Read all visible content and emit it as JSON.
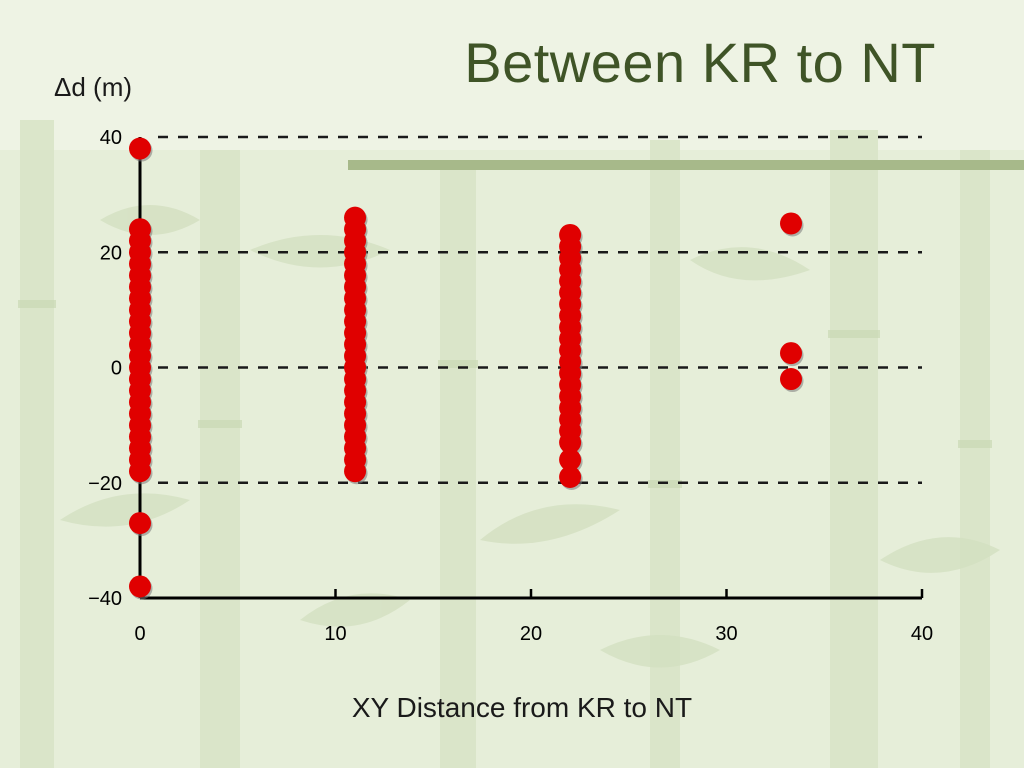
{
  "slide": {
    "title": "Between KR to NT"
  },
  "colors": {
    "background": "#e6eed9",
    "title": "#3f5427",
    "accent_bar": "#a7b98a",
    "points": "#e00000"
  },
  "chart_data": {
    "type": "scatter",
    "title": "",
    "xlabel": "XY Distance from KR to NT",
    "ylabel": "Δd (m)",
    "xlim": [
      0,
      40
    ],
    "ylim": [
      -40,
      40
    ],
    "xticks": [
      0,
      10,
      20,
      30,
      40
    ],
    "yticks": [
      40,
      20,
      0,
      -20,
      -40
    ],
    "ytick_labels": [
      "40",
      "20",
      "0",
      "−20",
      "−40"
    ],
    "grid": "horizontal dashed",
    "series": [
      {
        "points": [
          [
            0,
            38
          ],
          [
            0,
            24
          ],
          [
            0,
            22
          ],
          [
            0,
            20
          ],
          [
            0,
            18
          ],
          [
            0,
            16
          ],
          [
            0,
            14
          ],
          [
            0,
            12
          ],
          [
            0,
            10
          ],
          [
            0,
            8
          ],
          [
            0,
            6
          ],
          [
            0,
            4
          ],
          [
            0,
            2
          ],
          [
            0,
            0
          ],
          [
            0,
            -2
          ],
          [
            0,
            -4
          ],
          [
            0,
            -6
          ],
          [
            0,
            -8
          ],
          [
            0,
            -10
          ],
          [
            0,
            -12
          ],
          [
            0,
            -14
          ],
          [
            0,
            -16
          ],
          [
            0,
            -18
          ],
          [
            0,
            -27
          ],
          [
            0,
            -38
          ],
          [
            11,
            26
          ],
          [
            11,
            24
          ],
          [
            11,
            22
          ],
          [
            11,
            20
          ],
          [
            11,
            18
          ],
          [
            11,
            16
          ],
          [
            11,
            14
          ],
          [
            11,
            12
          ],
          [
            11,
            10
          ],
          [
            11,
            8
          ],
          [
            11,
            6
          ],
          [
            11,
            4
          ],
          [
            11,
            2
          ],
          [
            11,
            0
          ],
          [
            11,
            -2
          ],
          [
            11,
            -4
          ],
          [
            11,
            -6
          ],
          [
            11,
            -8
          ],
          [
            11,
            -10
          ],
          [
            11,
            -12
          ],
          [
            11,
            -14
          ],
          [
            11,
            -16
          ],
          [
            11,
            -18
          ],
          [
            22,
            23
          ],
          [
            22,
            21
          ],
          [
            22,
            19
          ],
          [
            22,
            17
          ],
          [
            22,
            15
          ],
          [
            22,
            13
          ],
          [
            22,
            11
          ],
          [
            22,
            9
          ],
          [
            22,
            7
          ],
          [
            22,
            5
          ],
          [
            22,
            3
          ],
          [
            22,
            1
          ],
          [
            22,
            -1
          ],
          [
            22,
            -3
          ],
          [
            22,
            -5
          ],
          [
            22,
            -7
          ],
          [
            22,
            -9
          ],
          [
            22,
            -11
          ],
          [
            22,
            -13
          ],
          [
            22,
            -16
          ],
          [
            22,
            -19
          ],
          [
            33.3,
            25
          ],
          [
            33.3,
            2.5
          ],
          [
            33.3,
            -2
          ]
        ]
      }
    ]
  }
}
